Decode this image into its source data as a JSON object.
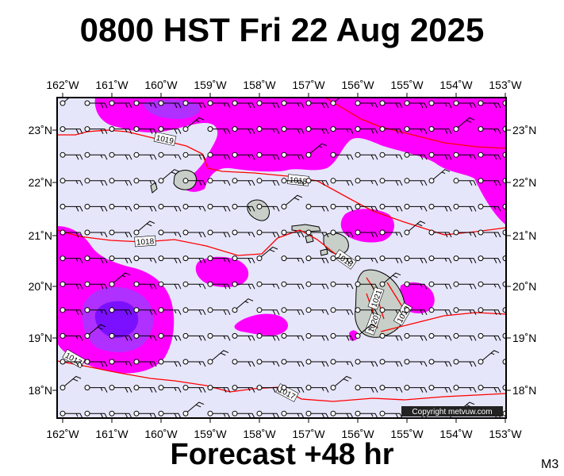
{
  "title": "0800 HST Fri 22 Aug 2025",
  "footer": "Forecast +48 hr",
  "model_label": "M3",
  "copyright": "Copyright metvuw.com",
  "lon_ticks": [
    "162˚W",
    "161˚W",
    "160˚W",
    "159˚W",
    "158˚W",
    "157˚W",
    "156˚W",
    "155˚W",
    "154˚W",
    "153˚W"
  ],
  "lat_ticks": [
    "23˚N",
    "22˚N",
    "21˚N",
    "20˚N",
    "19˚N",
    "18˚N"
  ],
  "isobar_labels": [
    "1019",
    "1018",
    "1018",
    "1018",
    "1021",
    "1020",
    "1019",
    "1017",
    "1017"
  ],
  "colors": {
    "ocean": "#e6e6fa",
    "rain_light": "#ff00ff",
    "rain_medium": "#b030ff",
    "rain_heavy": "#7a10ff",
    "isobar": "#ff0000",
    "land": "#c8cfc8"
  }
}
